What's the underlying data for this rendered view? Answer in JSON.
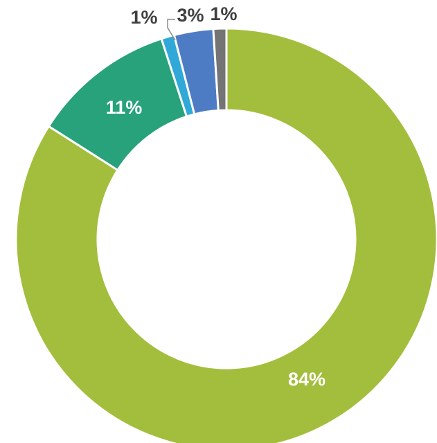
{
  "chart_data": {
    "type": "pie",
    "variant": "donut",
    "start_angle_deg": 0,
    "direction": "clockwise",
    "slices": [
      {
        "value": 84,
        "label": "84%",
        "color": "#A3BE3C",
        "label_color": "#FFFFFF"
      },
      {
        "value": 11,
        "label": "11%",
        "color": "#27A27B",
        "label_color": "#FFFFFF"
      },
      {
        "value": 1,
        "label": "1%",
        "color": "#30A9D8",
        "label_color": "#404040"
      },
      {
        "value": 3,
        "label": "3%",
        "color": "#4E7CC4",
        "label_color": "#404040"
      },
      {
        "value": 1,
        "label": "1%",
        "color": "#747474",
        "label_color": "#404040"
      }
    ],
    "legend": "none",
    "title": ""
  }
}
